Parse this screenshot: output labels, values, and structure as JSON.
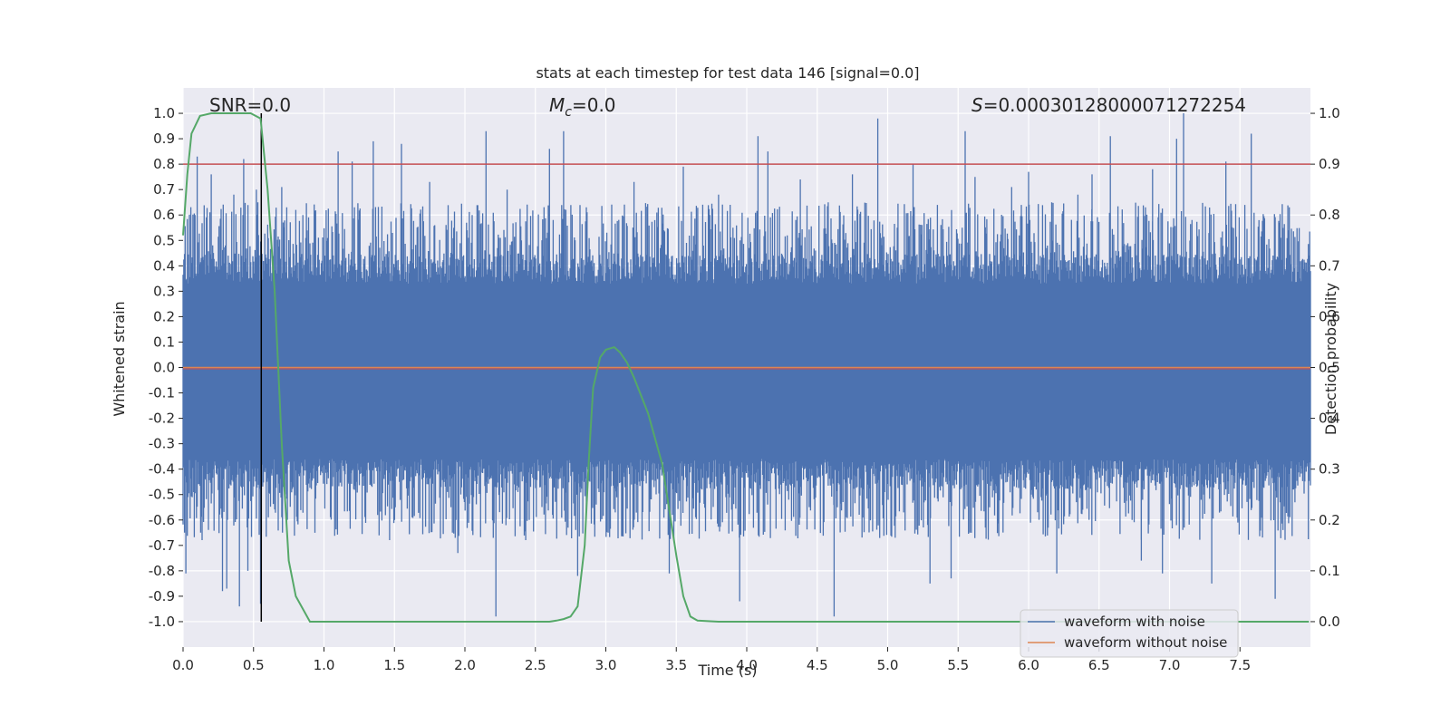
{
  "chart_data": {
    "type": "line",
    "title": "stats at each timestep for test data 146 [signal=0.0]",
    "xlabel": "Time (s)",
    "ylabel": "Whitened strain",
    "y2label": "Detection probability",
    "xlim": [
      0.0,
      8.0
    ],
    "ylim": [
      -1.1,
      1.1
    ],
    "y2lim": [
      -0.05,
      1.05
    ],
    "x_ticks": [
      0.0,
      0.5,
      1.0,
      1.5,
      2.0,
      2.5,
      3.0,
      3.5,
      4.0,
      4.5,
      5.0,
      5.5,
      6.0,
      6.5,
      7.0,
      7.5
    ],
    "x_tick_labels": [
      "0.0",
      "0.5",
      "1.0",
      "1.5",
      "2.0",
      "2.5",
      "3.0",
      "3.5",
      "4.0",
      "4.5",
      "5.0",
      "5.5",
      "6.0",
      "6.5",
      "7.0",
      "7.5"
    ],
    "y_ticks": [
      1.0,
      0.9,
      0.8,
      0.7,
      0.6,
      0.5,
      0.4,
      0.3,
      0.2,
      0.1,
      0.0,
      -0.1,
      -0.2,
      -0.3,
      -0.4,
      -0.5,
      -0.6,
      -0.7,
      -0.8,
      -0.9,
      -1.0
    ],
    "y_tick_labels": [
      "1.0",
      "0.9",
      "0.8",
      "0.7",
      "0.6",
      "0.5",
      "0.4",
      "0.3",
      "0.2",
      "0.1",
      "0.0",
      "-0.1",
      "-0.2",
      "-0.3",
      "-0.4",
      "-0.5",
      "-0.6",
      "-0.7",
      "-0.8",
      "-0.9",
      "-1.0"
    ],
    "y2_ticks": [
      1.0,
      0.9,
      0.8,
      0.7,
      0.6,
      0.5,
      0.4,
      0.3,
      0.2,
      0.1,
      0.0
    ],
    "y2_tick_labels": [
      "1.0",
      "0.9",
      "0.8",
      "0.7",
      "0.6",
      "0.5",
      "0.4",
      "0.3",
      "0.2",
      "0.1",
      "0.0"
    ],
    "grid": true,
    "legend_position": "lower-right",
    "annotations": {
      "snr": "SNR=0.0",
      "mc_symbol": "M",
      "mc_subscript": "c",
      "mc_value": "=0.0",
      "s_symbol": "S",
      "s_value": "=0.00030128000071272254"
    },
    "series": [
      {
        "name": "waveform with noise",
        "color": "#4c72b0",
        "description_of_values": "dense whitened noise, amplitude mostly within about ±0.5 with spikes up to ±1.0",
        "envelope_peaks": [
          [
            0.02,
            -0.81
          ],
          [
            0.07,
            0.6
          ],
          [
            0.1,
            0.83
          ],
          [
            0.2,
            0.76
          ],
          [
            0.28,
            -0.88
          ],
          [
            0.31,
            -0.87
          ],
          [
            0.36,
            0.68
          ],
          [
            0.4,
            -0.94
          ],
          [
            0.43,
            0.82
          ],
          [
            0.46,
            -0.8
          ],
          [
            0.52,
            0.7
          ],
          [
            0.55,
            -0.93
          ],
          [
            0.7,
            0.71
          ],
          [
            0.8,
            0.62
          ],
          [
            0.85,
            0.6
          ],
          [
            1.1,
            0.85
          ],
          [
            1.2,
            0.81
          ],
          [
            1.35,
            0.89
          ],
          [
            1.55,
            0.88
          ],
          [
            1.75,
            0.73
          ],
          [
            1.95,
            -0.73
          ],
          [
            2.15,
            0.93
          ],
          [
            2.22,
            -0.98
          ],
          [
            2.3,
            0.7
          ],
          [
            2.6,
            0.86
          ],
          [
            2.7,
            0.93
          ],
          [
            2.8,
            -0.82
          ],
          [
            3.2,
            0.73
          ],
          [
            3.45,
            -0.81
          ],
          [
            3.55,
            0.79
          ],
          [
            3.8,
            0.68
          ],
          [
            3.95,
            -0.92
          ],
          [
            4.08,
            0.91
          ],
          [
            4.15,
            0.85
          ],
          [
            4.38,
            0.74
          ],
          [
            4.62,
            -0.98
          ],
          [
            4.75,
            0.76
          ],
          [
            4.93,
            0.98
          ],
          [
            5.18,
            0.8
          ],
          [
            5.3,
            -0.85
          ],
          [
            5.45,
            -0.83
          ],
          [
            5.55,
            0.93
          ],
          [
            5.62,
            0.75
          ],
          [
            5.88,
            0.71
          ],
          [
            6.0,
            0.77
          ],
          [
            6.2,
            -0.81
          ],
          [
            6.35,
            0.68
          ],
          [
            6.45,
            0.76
          ],
          [
            6.58,
            0.91
          ],
          [
            6.8,
            -0.76
          ],
          [
            6.88,
            0.78
          ],
          [
            6.95,
            -0.81
          ],
          [
            7.05,
            0.9
          ],
          [
            7.1,
            1.0
          ],
          [
            7.3,
            -0.85
          ],
          [
            7.4,
            0.81
          ],
          [
            7.58,
            0.92
          ],
          [
            7.75,
            -0.91
          ],
          [
            7.85,
            0.63
          ]
        ]
      },
      {
        "name": "waveform without noise",
        "color": "#dd8452",
        "x": [
          0.0,
          8.0
        ],
        "y": [
          0.0,
          0.0
        ]
      },
      {
        "name": "",
        "axis": "right",
        "color": "#55a868",
        "x": [
          0.0,
          0.03,
          0.06,
          0.12,
          0.2,
          0.3,
          0.4,
          0.48,
          0.55,
          0.6,
          0.65,
          0.7,
          0.75,
          0.8,
          0.9,
          1.0,
          1.5,
          2.0,
          2.5,
          2.6,
          2.65,
          2.7,
          2.75,
          2.8,
          2.85,
          2.88,
          2.91,
          2.96,
          3.0,
          3.06,
          3.1,
          3.15,
          3.2,
          3.3,
          3.4,
          3.45,
          3.5,
          3.55,
          3.6,
          3.65,
          3.8,
          4.0,
          5.0,
          6.0,
          7.0,
          7.99
        ],
        "y": [
          0.76,
          0.88,
          0.96,
          0.995,
          1.0,
          1.0,
          1.0,
          1.0,
          0.99,
          0.85,
          0.65,
          0.35,
          0.12,
          0.05,
          0.0,
          0.0,
          0.0,
          0.0,
          0.0,
          0.0,
          0.002,
          0.005,
          0.01,
          0.03,
          0.15,
          0.32,
          0.46,
          0.52,
          0.535,
          0.54,
          0.53,
          0.51,
          0.48,
          0.41,
          0.31,
          0.22,
          0.13,
          0.05,
          0.01,
          0.002,
          0.0,
          0.0,
          0.0,
          0.0,
          0.0,
          0.0
        ]
      }
    ],
    "threshold_line": {
      "axis": "right",
      "y": 0.9,
      "color": "#c44e52"
    },
    "marker_line": {
      "x": 0.555,
      "y_from": 0.0,
      "y_to": 1.0,
      "axis": "right",
      "color": "#000000"
    },
    "zero_line": {
      "y": 0.0,
      "color": "#c44e52"
    }
  }
}
